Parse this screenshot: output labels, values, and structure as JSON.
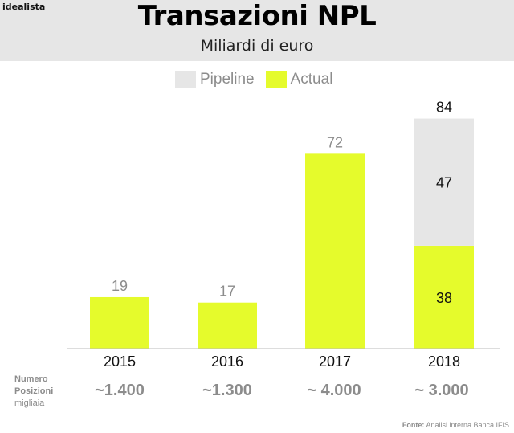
{
  "brand": "idealista",
  "header": {
    "title": "Transazioni NPL",
    "subtitle": "Miliardi di euro"
  },
  "legend": [
    {
      "label": "Pipeline",
      "color": "#e6e6e6"
    },
    {
      "label": "Actual",
      "color": "#e5fb2c"
    }
  ],
  "chart_data": {
    "type": "bar",
    "stacked": true,
    "title": "Transazioni NPL",
    "subtitle": "Miliardi di euro",
    "categories": [
      "2015",
      "2016",
      "2017",
      "2018"
    ],
    "series": [
      {
        "name": "Actual",
        "values": [
          19,
          17,
          72,
          38
        ],
        "color": "#e5fb2c"
      },
      {
        "name": "Pipeline",
        "values": [
          0,
          0,
          0,
          47
        ],
        "color": "#e6e6e6"
      }
    ],
    "total_labels": [
      "19",
      "17",
      "72",
      "84"
    ],
    "segment_labels": {
      "actual": [
        "",
        "",
        "",
        "38"
      ],
      "pipeline": [
        "",
        "",
        "",
        "47"
      ]
    },
    "ylim": [
      0,
      90
    ],
    "grid": false,
    "legend_position": "top"
  },
  "positions": {
    "label_line1": "Numero",
    "label_line2": "Posizioni",
    "label_line3": "migliaia",
    "values": [
      "~1.400",
      "~1.300",
      "~ 4.000",
      "~ 3.000"
    ]
  },
  "source": {
    "label": "Fonte:",
    "text": "Analisi interna Banca IFIS"
  }
}
